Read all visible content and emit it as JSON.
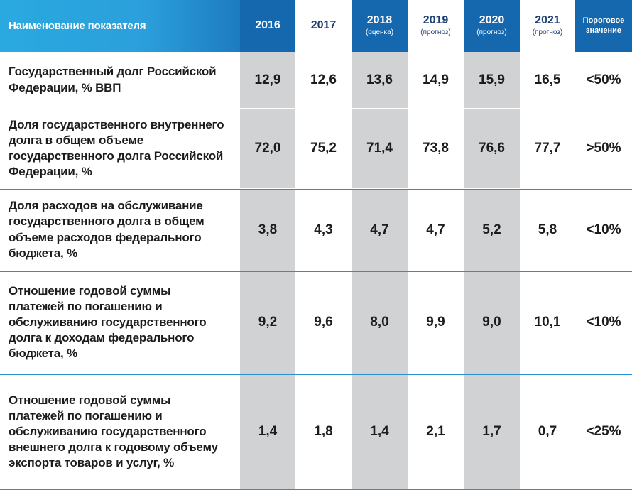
{
  "header": {
    "name_label": "Наименование показателя",
    "y2016": "2016",
    "y2017": "2017",
    "y2018": "2018",
    "y2018_sub": "(оценка)",
    "y2019": "2019",
    "y2019_sub": "(прогноз)",
    "y2020": "2020",
    "y2020_sub": "(прогноз)",
    "y2021": "2021",
    "y2021_sub": "(прогноз)",
    "threshold_line1": "Пороговое",
    "threshold_line2": "значение"
  },
  "rows": [
    {
      "label": "Государственный долг Российской Федерации, %  ВВП",
      "values": [
        "12,9",
        "12,6",
        "13,6",
        "14,9",
        "15,9",
        "16,5"
      ],
      "threshold": "<50%"
    },
    {
      "label": "Доля государственного внутреннего долга в общем объеме государственного долга Российской Федерации, %",
      "values": [
        "72,0",
        "75,2",
        "71,4",
        "73,8",
        "76,6",
        "77,7"
      ],
      "threshold": ">50%"
    },
    {
      "label": "Доля расходов на обслуживание государственного долга в общем объеме расходов федерального бюджета, %",
      "values": [
        "3,8",
        "4,3",
        "4,7",
        "4,7",
        "5,2",
        "5,8"
      ],
      "threshold": "<10%"
    },
    {
      "label": "Отношение годовой суммы платежей по погашению и обслуживанию государственного долга к доходам федерального бюджета, %",
      "values": [
        "9,2",
        "9,6",
        "8,0",
        "9,9",
        "9,0",
        "10,1"
      ],
      "threshold": "<10%"
    },
    {
      "label": "Отношение годовой суммы платежей по погашению и обслуживанию государственного внешнего долга к годовому объему экспорта товаров и услуг, %",
      "values": [
        "1,4",
        "1,8",
        "1,4",
        "2,1",
        "1,7",
        "0,7"
      ],
      "threshold": "<25%"
    }
  ],
  "colors": {
    "header_light": "#2aa9e0",
    "header_dark": "#1567ae",
    "cell_gray": "#d1d2d4",
    "row_separator": "#2a8fd0"
  }
}
